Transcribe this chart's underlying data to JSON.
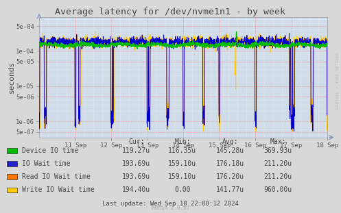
{
  "title": "Average latency for /dev/nvme1n1 - by week",
  "ylabel": "seconds",
  "background_color": "#d8d8d8",
  "plot_bg_color": "#d0dce8",
  "grid_color_major": "#ff8888",
  "grid_color_minor": "#ffffff",
  "xticklabels": [
    "11 Sep",
    "12 Sep",
    "13 Sep",
    "14 Sep",
    "15 Sep",
    "16 Sep",
    "17 Sep",
    "18 Sep"
  ],
  "ylim_min": 3.5e-07,
  "ylim_max": 0.0009,
  "yticks": [
    5e-07,
    1e-06,
    5e-06,
    1e-05,
    5e-05,
    0.0001,
    0.0005
  ],
  "ytick_labels": [
    "5e-07",
    "1e-06",
    "5e-06",
    "1e-05",
    "5e-05",
    "1e-04",
    "5e-04"
  ],
  "series_colors": [
    "#00bb00",
    "#0000cc",
    "#ff7700",
    "#ffcc00"
  ],
  "legend_labels": [
    "Device IO time",
    "IO Wait time",
    "Read IO Wait time",
    "Write IO Wait time"
  ],
  "legend_colors": [
    "#00bb00",
    "#2222cc",
    "#ff7700",
    "#ffcc00"
  ],
  "stats_headers": [
    "Cur:",
    "Min:",
    "Avg:",
    "Max:"
  ],
  "stats_rows": [
    [
      "Device IO time",
      "119.27u",
      "116.35u",
      "145.28u",
      "369.93u"
    ],
    [
      "IO Wait time",
      "193.69u",
      "159.10u",
      "176.18u",
      "211.20u"
    ],
    [
      "Read IO Wait time",
      "193.69u",
      "159.10u",
      "176.20u",
      "211.20u"
    ],
    [
      "Write IO Wait time",
      "194.40u",
      "0.00",
      "141.77u",
      "960.00u"
    ]
  ],
  "footer": "Last update: Wed Sep 18 22:00:12 2024",
  "watermark": "Munin 2.0.67",
  "rrdtool_label": "RRDTOOL / TOBI OETIKER",
  "text_color": "#444444",
  "tick_color": "#555555"
}
